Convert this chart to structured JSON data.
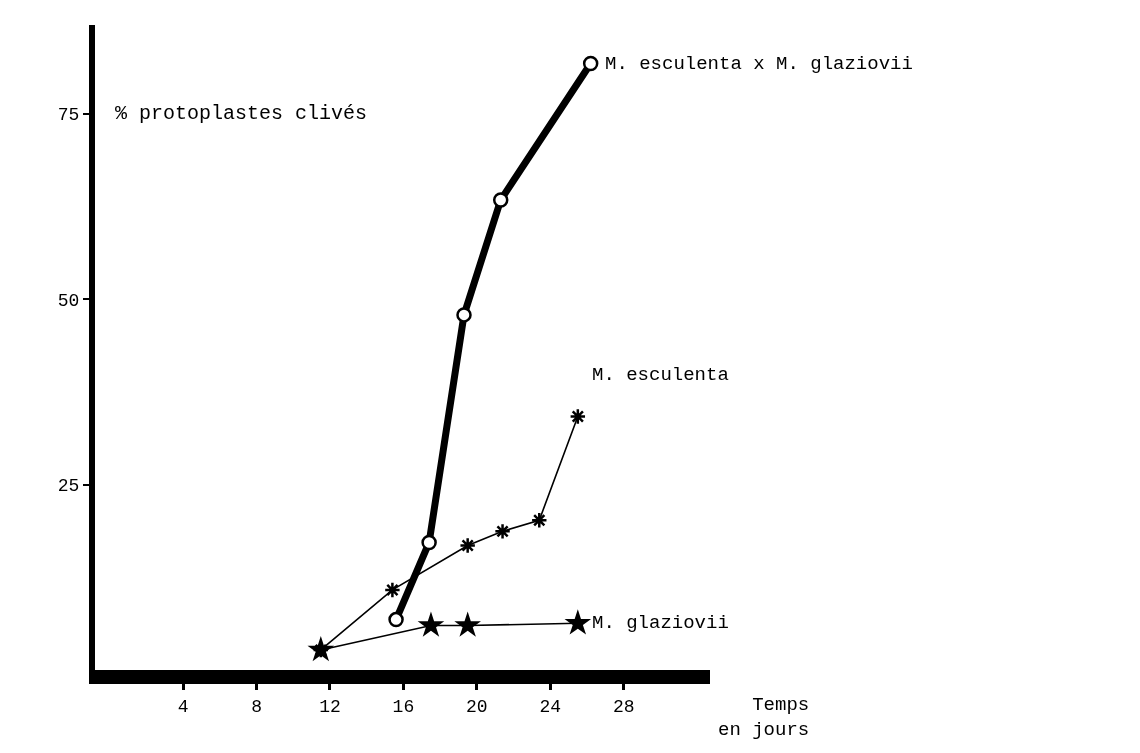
{
  "chart_data": {
    "type": "line",
    "xlabel": "Temps\nen jours",
    "ylabel": "% protoplastes clivés",
    "xlim": [
      -0.8,
      32.7
    ],
    "xticks": [
      4,
      8,
      12,
      16,
      20,
      24,
      28
    ],
    "ylim": [
      0,
      87
    ],
    "yticks": [
      25,
      50,
      75
    ],
    "legend": false,
    "series": [
      {
        "name": "M. esculenta x M. glaziovii",
        "color": "#000000",
        "marker": "circle",
        "x": [
          15.6,
          17.4,
          19.3,
          21.3,
          26.2
        ],
        "values": [
          6.8,
          17.2,
          47.9,
          63.4,
          81.8
        ]
      },
      {
        "name": "M. esculenta",
        "color": "#000000",
        "marker": "cross",
        "x": [
          11.5,
          15.4,
          19.5,
          21.4,
          23.4,
          25.5
        ],
        "values": [
          2.7,
          10.8,
          16.8,
          18.7,
          20.2,
          34.2
        ]
      },
      {
        "name": "M. glaziovii",
        "color": "#000000",
        "marker": "star",
        "x": [
          11.5,
          17.5,
          19.5,
          25.5
        ],
        "values": [
          2.7,
          6.0,
          6.0,
          6.3
        ]
      }
    ]
  }
}
